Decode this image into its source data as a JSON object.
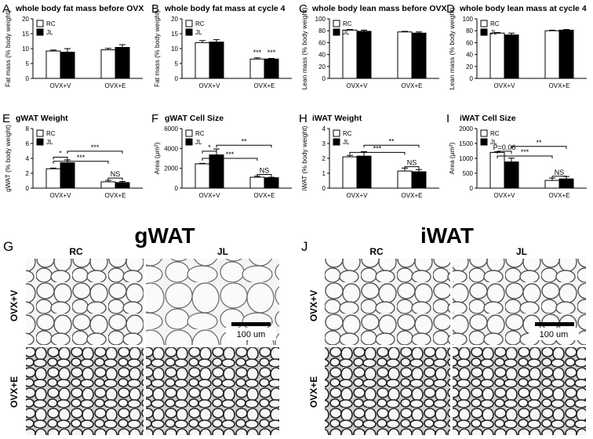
{
  "chart_data": [
    {
      "type": "bar",
      "panel": "A",
      "title": "whole body fat mass before OVX",
      "ylabel": "Fat mass (% body weight)",
      "categories": [
        "OVX+V",
        "OVX+E"
      ],
      "series": [
        {
          "name": "RC",
          "color": "#ffffff",
          "values": [
            9.2,
            9.6
          ],
          "errors": [
            0.3,
            0.5
          ]
        },
        {
          "name": "JL",
          "color": "#000000",
          "values": [
            8.8,
            10.4
          ],
          "errors": [
            1.2,
            0.9
          ]
        }
      ],
      "ylim": [
        0,
        20
      ],
      "yticks": [
        0,
        5,
        10,
        15,
        20
      ],
      "grid": false,
      "legend": "upper left",
      "annotations": []
    },
    {
      "type": "bar",
      "panel": "B",
      "title": "whole body fat mass at cycle 4",
      "ylabel": "Fat mass (% body weight)",
      "categories": [
        "OVX+V",
        "OVX+E"
      ],
      "series": [
        {
          "name": "RC",
          "color": "#ffffff",
          "values": [
            12,
            6.5
          ],
          "errors": [
            0.7,
            0.4
          ]
        },
        {
          "name": "JL",
          "color": "#000000",
          "values": [
            12.2,
            6.5
          ],
          "errors": [
            0.8,
            0.2
          ]
        }
      ],
      "ylim": [
        0,
        20
      ],
      "yticks": [
        0,
        5,
        10,
        15,
        20
      ],
      "grid": false,
      "legend": "upper left",
      "annotations": [
        "***",
        "***"
      ]
    },
    {
      "type": "bar",
      "panel": "C",
      "title": "whole body lean mass before OVX",
      "ylabel": "Lean mass (% body weight)",
      "categories": [
        "OVX+V",
        "OVX+E"
      ],
      "series": [
        {
          "name": "RC",
          "color": "#ffffff",
          "values": [
            81,
            78
          ],
          "errors": [
            1,
            1
          ]
        },
        {
          "name": "JL",
          "color": "#000000",
          "values": [
            79,
            76
          ],
          "errors": [
            2,
            2
          ]
        }
      ],
      "ylim": [
        0,
        100
      ],
      "yticks": [
        0,
        20,
        40,
        60,
        80,
        100
      ],
      "grid": false,
      "legend": "upper left",
      "annotations": []
    },
    {
      "type": "bar",
      "panel": "D",
      "title": "whole body lean mass at cycle 4",
      "ylabel": "Lean mass (% body weight)",
      "categories": [
        "OVX+V",
        "OVX+E"
      ],
      "series": [
        {
          "name": "RC",
          "color": "#ffffff",
          "values": [
            76,
            80
          ],
          "errors": [
            1,
            1
          ]
        },
        {
          "name": "JL",
          "color": "#000000",
          "values": [
            73,
            81
          ],
          "errors": [
            3,
            1
          ]
        }
      ],
      "ylim": [
        0,
        100
      ],
      "yticks": [
        0,
        20,
        40,
        60,
        80,
        100
      ],
      "grid": false,
      "legend": "upper left",
      "annotations": []
    },
    {
      "type": "bar",
      "panel": "E",
      "title": "gWAT Weight",
      "ylabel": "gWAT (% body weight)",
      "categories": [
        "OVX+V",
        "OVX+E"
      ],
      "series": [
        {
          "name": "RC",
          "color": "#ffffff",
          "values": [
            2.6,
            0.85
          ],
          "errors": [
            0.1,
            0.2
          ]
        },
        {
          "name": "JL",
          "color": "#000000",
          "values": [
            3.4,
            0.75
          ],
          "errors": [
            0.4,
            0.15
          ]
        }
      ],
      "ylim": [
        0,
        8
      ],
      "yticks": [
        0,
        2,
        4,
        6,
        8
      ],
      "grid": false,
      "legend": "upper left",
      "annotations": [
        "*",
        "***",
        "***",
        "NS"
      ]
    },
    {
      "type": "bar",
      "panel": "F",
      "title": "gWAT Cell Size",
      "ylabel": "Area (μm²)",
      "categories": [
        "OVX+V",
        "OVX+E"
      ],
      "series": [
        {
          "name": "RC",
          "color": "#ffffff",
          "values": [
            2450,
            1100
          ],
          "errors": [
            50,
            100
          ]
        },
        {
          "name": "JL",
          "color": "#000000",
          "values": [
            3350,
            1050
          ],
          "errors": [
            600,
            50
          ]
        }
      ],
      "ylim": [
        0,
        6000
      ],
      "yticks": [
        0,
        2000,
        4000,
        6000
      ],
      "grid": false,
      "legend": "upper left",
      "annotations": [
        "*",
        "***",
        "**",
        "NS"
      ]
    },
    {
      "type": "bar",
      "panel": "H",
      "title": "iWAT Weight",
      "ylabel": "iWAT (% body weight)",
      "categories": [
        "OVX+V",
        "OVX+E"
      ],
      "series": [
        {
          "name": "RC",
          "color": "#ffffff",
          "values": [
            2.1,
            1.15
          ],
          "errors": [
            0.1,
            0.2
          ]
        },
        {
          "name": "JL",
          "color": "#000000",
          "values": [
            2.15,
            1.1
          ],
          "errors": [
            0.3,
            0.15
          ]
        }
      ],
      "ylim": [
        0,
        4
      ],
      "yticks": [
        0,
        1,
        2,
        3,
        4
      ],
      "grid": false,
      "legend": "upper left",
      "annotations": [
        "***",
        "**",
        "NS"
      ]
    },
    {
      "type": "bar",
      "panel": "I",
      "title": "iWAT Cell Size",
      "ylabel": "Area (μm²)",
      "categories": [
        "OVX+V",
        "OVX+E"
      ],
      "series": [
        {
          "name": "RC",
          "color": "#ffffff",
          "values": [
            1200,
            260
          ],
          "errors": [
            20,
            80
          ]
        },
        {
          "name": "JL",
          "color": "#000000",
          "values": [
            880,
            310
          ],
          "errors": [
            130,
            80
          ]
        }
      ],
      "ylim": [
        0,
        2000
      ],
      "yticks": [
        0,
        500,
        1000,
        1500,
        2000
      ],
      "grid": false,
      "legend": "upper left",
      "annotations": [
        "P=0.06",
        "***",
        "**",
        "NS"
      ]
    }
  ],
  "images": [
    {
      "letter": "G",
      "title": "gWAT",
      "columns": [
        "RC",
        "JL"
      ],
      "rows": [
        "OVX+V",
        "OVX+E"
      ],
      "scale": "100 um"
    },
    {
      "letter": "J",
      "title": "iWAT",
      "columns": [
        "RC",
        "JL"
      ],
      "rows": [
        "OVX+V",
        "OVX+E"
      ],
      "scale": "100 um"
    }
  ]
}
